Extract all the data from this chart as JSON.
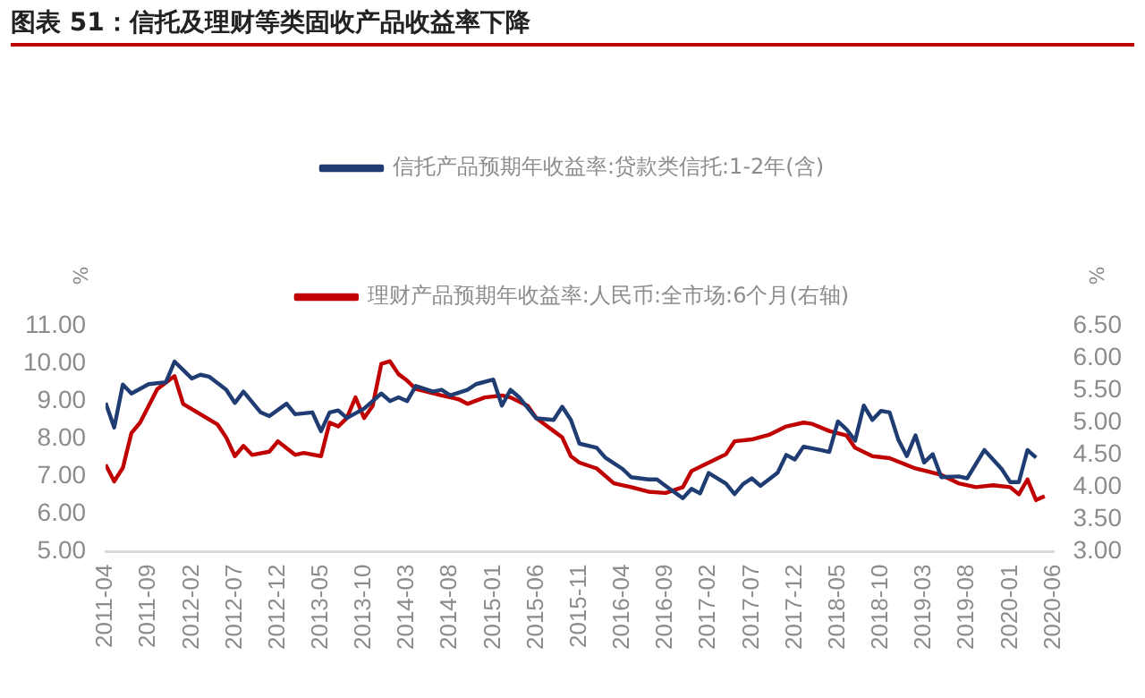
{
  "chart_data": {
    "type": "line",
    "title": "图表 51：信托及理财等类固收产品收益率下降",
    "ylabel": "%",
    "y2label": "%",
    "legend": "top",
    "grid": false,
    "marker": "none",
    "line_style": "solid",
    "xlim": [
      "2011-04",
      "2020-06"
    ],
    "xticks": [
      "2011-04",
      "2011-09",
      "2012-02",
      "2012-07",
      "2012-12",
      "2013-05",
      "2013-10",
      "2014-03",
      "2014-08",
      "2015-01",
      "2015-06",
      "2015-11",
      "2016-04",
      "2016-09",
      "2017-02",
      "2017-07",
      "2017-12",
      "2018-05",
      "2018-10",
      "2019-03",
      "2019-08",
      "2020-01",
      "2020-06"
    ],
    "ylim": [
      5,
      11
    ],
    "yticks": [
      {
        "value": 5,
        "label": "5.00"
      },
      {
        "value": 6,
        "label": "6.00"
      },
      {
        "value": 7,
        "label": "7.00"
      },
      {
        "value": 8,
        "label": "8.00"
      },
      {
        "value": 9,
        "label": "9.00"
      },
      {
        "value": 10,
        "label": "10.00"
      },
      {
        "value": 11,
        "label": "11.00"
      }
    ],
    "y2lim": [
      3,
      6.5
    ],
    "y2ticks": [
      {
        "value": 3,
        "label": "3.00"
      },
      {
        "value": 3.5,
        "label": "3.50"
      },
      {
        "value": 4,
        "label": "4.00"
      },
      {
        "value": 4.5,
        "label": "4.50"
      },
      {
        "value": 5,
        "label": "5.00"
      },
      {
        "value": 5.5,
        "label": "5.50"
      },
      {
        "value": 6,
        "label": "6.00"
      },
      {
        "value": 6.5,
        "label": "6.50"
      }
    ],
    "series": [
      {
        "name": "信托产品预期年收益率:贷款类信托:1-2年(含)",
        "color": "#1f3c73",
        "x": [
          "2011-04",
          "2011-05",
          "2011-06",
          "2011-07",
          "2011-09",
          "2011-11",
          "2011-12",
          "2012-02",
          "2012-03",
          "2012-04",
          "2012-06",
          "2012-07",
          "2012-08",
          "2012-10",
          "2012-11",
          "2013-01",
          "2013-02",
          "2013-04",
          "2013-05",
          "2013-06",
          "2013-07",
          "2013-08",
          "2013-10",
          "2013-12",
          "2014-01",
          "2014-02",
          "2014-03",
          "2014-04",
          "2014-06",
          "2014-07",
          "2014-08",
          "2014-10",
          "2014-11",
          "2015-01",
          "2015-02",
          "2015-03",
          "2015-04",
          "2015-06",
          "2015-08",
          "2015-09",
          "2015-10",
          "2015-11",
          "2016-01",
          "2016-02",
          "2016-04",
          "2016-05",
          "2016-07",
          "2016-08",
          "2016-09",
          "2016-11",
          "2016-12",
          "2017-01",
          "2017-02",
          "2017-04",
          "2017-05",
          "2017-06",
          "2017-07",
          "2017-08",
          "2017-10",
          "2017-11",
          "2017-12",
          "2018-01",
          "2018-03",
          "2018-04",
          "2018-05",
          "2018-06",
          "2018-07",
          "2018-08",
          "2018-09",
          "2018-10",
          "2018-11",
          "2018-12",
          "2019-01",
          "2019-02",
          "2019-03",
          "2019-04",
          "2019-05",
          "2019-07",
          "2019-08",
          "2019-10",
          "2019-12",
          "2020-01",
          "2020-02",
          "2020-03",
          "2020-04"
        ],
        "values": [
          8.95,
          8.3,
          9.44,
          9.2,
          9.45,
          9.5,
          10.05,
          9.6,
          9.7,
          9.65,
          9.3,
          8.95,
          9.25,
          8.7,
          8.6,
          8.93,
          8.65,
          8.7,
          8.2,
          8.7,
          8.75,
          8.55,
          8.8,
          9.2,
          9.0,
          9.1,
          9.0,
          9.4,
          9.25,
          9.3,
          9.15,
          9.3,
          9.45,
          9.57,
          8.88,
          9.3,
          9.1,
          8.54,
          8.5,
          8.85,
          8.5,
          7.87,
          7.76,
          7.5,
          7.2,
          6.98,
          6.92,
          6.92,
          6.75,
          6.42,
          6.67,
          6.55,
          7.09,
          6.81,
          6.53,
          6.8,
          6.95,
          6.75,
          7.1,
          7.57,
          7.45,
          7.79,
          7.7,
          7.65,
          8.46,
          8.25,
          7.95,
          8.88,
          8.5,
          8.74,
          8.7,
          7.98,
          7.54,
          8.09,
          7.37,
          7.59,
          6.98,
          7.0,
          6.95,
          7.7,
          7.2,
          6.85,
          6.85,
          7.7,
          7.5
        ]
      },
      {
        "name": "理财产品预期年收益率:人民币:全市场:6个月(右轴)",
        "color": "#c00000",
        "axis": "y2",
        "x": [
          "2011-04",
          "2011-05",
          "2011-06",
          "2011-07",
          "2011-08",
          "2011-10",
          "2011-11",
          "2011-12",
          "2012-01",
          "2012-03",
          "2012-05",
          "2012-06",
          "2012-07",
          "2012-08",
          "2012-09",
          "2012-11",
          "2012-12",
          "2013-02",
          "2013-03",
          "2013-05",
          "2013-06",
          "2013-07",
          "2013-08",
          "2013-09",
          "2013-10",
          "2013-11",
          "2013-12",
          "2014-01",
          "2014-02",
          "2014-03",
          "2014-04",
          "2014-07",
          "2014-09",
          "2014-10",
          "2014-12",
          "2015-02",
          "2015-03",
          "2015-05",
          "2015-06",
          "2015-07",
          "2015-08",
          "2015-09",
          "2015-10",
          "2015-11",
          "2016-01",
          "2016-03",
          "2016-05",
          "2016-07",
          "2016-09",
          "2016-11",
          "2016-12",
          "2017-02",
          "2017-04",
          "2017-05",
          "2017-07",
          "2017-09",
          "2017-11",
          "2018-01",
          "2018-02",
          "2018-04",
          "2018-06",
          "2018-07",
          "2018-09",
          "2018-11",
          "2019-02",
          "2019-05",
          "2019-07",
          "2019-09",
          "2019-11",
          "2020-01",
          "2020-02",
          "2020-03",
          "2020-04",
          "2020-05"
        ],
        "values": [
          4.35,
          4.09,
          4.3,
          4.84,
          5.0,
          5.52,
          5.62,
          5.72,
          5.29,
          5.13,
          4.97,
          4.77,
          4.48,
          4.64,
          4.5,
          4.55,
          4.71,
          4.5,
          4.53,
          4.48,
          5.0,
          4.94,
          5.07,
          5.39,
          5.07,
          5.26,
          5.91,
          5.95,
          5.75,
          5.65,
          5.52,
          5.42,
          5.36,
          5.29,
          5.39,
          5.42,
          5.39,
          5.26,
          5.07,
          4.97,
          4.87,
          4.77,
          4.48,
          4.38,
          4.29,
          4.06,
          4.0,
          3.93,
          3.91,
          4.0,
          4.25,
          4.38,
          4.51,
          4.71,
          4.74,
          4.81,
          4.94,
          5.0,
          4.98,
          4.87,
          4.8,
          4.61,
          4.48,
          4.45,
          4.29,
          4.19,
          4.06,
          4.0,
          4.03,
          4.0,
          3.89,
          4.12,
          3.8,
          3.86
        ]
      }
    ]
  }
}
